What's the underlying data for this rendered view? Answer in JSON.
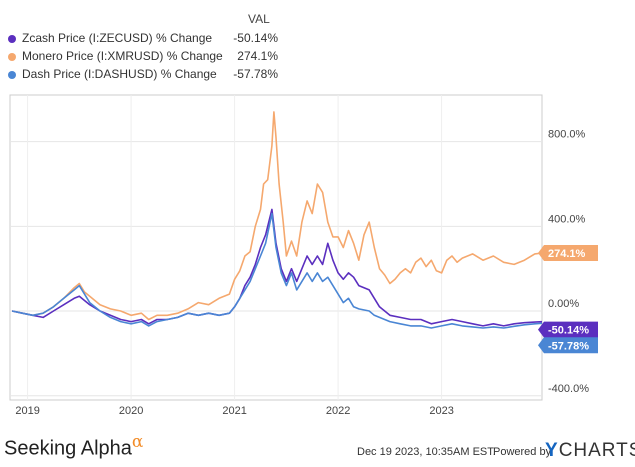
{
  "legend": {
    "value_header": "VAL",
    "items": [
      {
        "label": "Zcash Price (I:ZECUSD) % Change",
        "value": "-50.14%",
        "color": "#5b2fbf"
      },
      {
        "label": "Monero Price (I:XMRUSD) % Change",
        "value": "274.1%",
        "color": "#f5a86e"
      },
      {
        "label": "Dash Price (I:DASHUSD) % Change",
        "value": "-57.78%",
        "color": "#4a86d4"
      }
    ]
  },
  "chart_data": {
    "type": "line",
    "title": "",
    "xlabel": "",
    "ylabel": "",
    "x_ticks": [
      "2019",
      "2020",
      "2021",
      "2022",
      "2023"
    ],
    "y_ticks": [
      "800.0%",
      "400.0%",
      "0.00%",
      "-400.0%"
    ],
    "ylim": [
      -400,
      1000
    ],
    "xlim": [
      2018.83,
      2023.97
    ],
    "grid": "horizontal",
    "end_labels": [
      {
        "text": "274.1%",
        "value": 274.1,
        "color": "#f5a86e"
      },
      {
        "text": "-50.14%",
        "value": -50.14,
        "color": "#5b2fbf"
      },
      {
        "text": "-57.78%",
        "value": -57.78,
        "color": "#4a86d4"
      }
    ],
    "series": [
      {
        "name": "Monero Price (I:XMRUSD) % Change",
        "color": "#f5a86e",
        "points": [
          [
            2018.85,
            0
          ],
          [
            2018.95,
            -10
          ],
          [
            2019.05,
            -20
          ],
          [
            2019.15,
            -10
          ],
          [
            2019.25,
            20
          ],
          [
            2019.35,
            60
          ],
          [
            2019.45,
            110
          ],
          [
            2019.5,
            130
          ],
          [
            2019.55,
            90
          ],
          [
            2019.6,
            70
          ],
          [
            2019.7,
            30
          ],
          [
            2019.8,
            10
          ],
          [
            2019.9,
            0
          ],
          [
            2020.0,
            -20
          ],
          [
            2020.1,
            -10
          ],
          [
            2020.17,
            -40
          ],
          [
            2020.25,
            -20
          ],
          [
            2020.35,
            -20
          ],
          [
            2020.45,
            -10
          ],
          [
            2020.55,
            10
          ],
          [
            2020.65,
            40
          ],
          [
            2020.75,
            30
          ],
          [
            2020.85,
            60
          ],
          [
            2020.95,
            80
          ],
          [
            2021.0,
            150
          ],
          [
            2021.05,
            190
          ],
          [
            2021.1,
            260
          ],
          [
            2021.15,
            280
          ],
          [
            2021.2,
            400
          ],
          [
            2021.25,
            480
          ],
          [
            2021.28,
            600
          ],
          [
            2021.32,
            620
          ],
          [
            2021.36,
            780
          ],
          [
            2021.38,
            940
          ],
          [
            2021.4,
            820
          ],
          [
            2021.43,
            600
          ],
          [
            2021.47,
            420
          ],
          [
            2021.5,
            260
          ],
          [
            2021.55,
            330
          ],
          [
            2021.6,
            260
          ],
          [
            2021.65,
            420
          ],
          [
            2021.7,
            520
          ],
          [
            2021.75,
            460
          ],
          [
            2021.8,
            600
          ],
          [
            2021.85,
            560
          ],
          [
            2021.9,
            420
          ],
          [
            2021.95,
            350
          ],
          [
            2022.0,
            350
          ],
          [
            2022.05,
            300
          ],
          [
            2022.1,
            380
          ],
          [
            2022.15,
            320
          ],
          [
            2022.2,
            240
          ],
          [
            2022.25,
            360
          ],
          [
            2022.3,
            420
          ],
          [
            2022.35,
            300
          ],
          [
            2022.4,
            200
          ],
          [
            2022.45,
            170
          ],
          [
            2022.5,
            130
          ],
          [
            2022.55,
            150
          ],
          [
            2022.6,
            180
          ],
          [
            2022.65,
            200
          ],
          [
            2022.7,
            180
          ],
          [
            2022.75,
            230
          ],
          [
            2022.8,
            250
          ],
          [
            2022.85,
            210
          ],
          [
            2022.9,
            240
          ],
          [
            2022.95,
            190
          ],
          [
            2023.0,
            180
          ],
          [
            2023.05,
            240
          ],
          [
            2023.1,
            260
          ],
          [
            2023.15,
            230
          ],
          [
            2023.2,
            250
          ],
          [
            2023.3,
            270
          ],
          [
            2023.4,
            240
          ],
          [
            2023.5,
            260
          ],
          [
            2023.6,
            230
          ],
          [
            2023.7,
            220
          ],
          [
            2023.8,
            240
          ],
          [
            2023.9,
            270
          ],
          [
            2023.97,
            274.1
          ]
        ]
      },
      {
        "name": "Zcash Price (I:ZECUSD) % Change",
        "color": "#5b2fbf",
        "points": [
          [
            2018.85,
            0
          ],
          [
            2018.95,
            -10
          ],
          [
            2019.05,
            -20
          ],
          [
            2019.15,
            -30
          ],
          [
            2019.25,
            0
          ],
          [
            2019.35,
            30
          ],
          [
            2019.45,
            60
          ],
          [
            2019.5,
            70
          ],
          [
            2019.55,
            50
          ],
          [
            2019.6,
            30
          ],
          [
            2019.7,
            0
          ],
          [
            2019.8,
            -20
          ],
          [
            2019.9,
            -40
          ],
          [
            2020.0,
            -50
          ],
          [
            2020.1,
            -40
          ],
          [
            2020.17,
            -60
          ],
          [
            2020.25,
            -40
          ],
          [
            2020.35,
            -40
          ],
          [
            2020.45,
            -30
          ],
          [
            2020.55,
            -10
          ],
          [
            2020.65,
            -20
          ],
          [
            2020.75,
            -10
          ],
          [
            2020.85,
            -20
          ],
          [
            2020.95,
            -10
          ],
          [
            2021.0,
            20
          ],
          [
            2021.05,
            60
          ],
          [
            2021.1,
            120
          ],
          [
            2021.15,
            160
          ],
          [
            2021.2,
            220
          ],
          [
            2021.25,
            300
          ],
          [
            2021.3,
            360
          ],
          [
            2021.36,
            480
          ],
          [
            2021.4,
            320
          ],
          [
            2021.45,
            200
          ],
          [
            2021.5,
            140
          ],
          [
            2021.55,
            200
          ],
          [
            2021.6,
            140
          ],
          [
            2021.65,
            200
          ],
          [
            2021.7,
            260
          ],
          [
            2021.75,
            220
          ],
          [
            2021.8,
            260
          ],
          [
            2021.85,
            220
          ],
          [
            2021.9,
            320
          ],
          [
            2021.95,
            240
          ],
          [
            2022.0,
            180
          ],
          [
            2022.05,
            150
          ],
          [
            2022.1,
            180
          ],
          [
            2022.15,
            160
          ],
          [
            2022.2,
            120
          ],
          [
            2022.3,
            100
          ],
          [
            2022.35,
            60
          ],
          [
            2022.4,
            20
          ],
          [
            2022.45,
            0
          ],
          [
            2022.5,
            -20
          ],
          [
            2022.6,
            -30
          ],
          [
            2022.7,
            -40
          ],
          [
            2022.8,
            -40
          ],
          [
            2022.9,
            -60
          ],
          [
            2023.0,
            -50
          ],
          [
            2023.1,
            -40
          ],
          [
            2023.2,
            -50
          ],
          [
            2023.3,
            -60
          ],
          [
            2023.4,
            -70
          ],
          [
            2023.5,
            -60
          ],
          [
            2023.6,
            -70
          ],
          [
            2023.7,
            -60
          ],
          [
            2023.8,
            -55
          ],
          [
            2023.9,
            -52
          ],
          [
            2023.97,
            -50.14
          ]
        ]
      },
      {
        "name": "Dash Price (I:DASHUSD) % Change",
        "color": "#4a86d4",
        "points": [
          [
            2018.85,
            0
          ],
          [
            2018.95,
            -10
          ],
          [
            2019.05,
            -20
          ],
          [
            2019.15,
            -10
          ],
          [
            2019.25,
            20
          ],
          [
            2019.35,
            60
          ],
          [
            2019.45,
            100
          ],
          [
            2019.5,
            120
          ],
          [
            2019.55,
            80
          ],
          [
            2019.6,
            40
          ],
          [
            2019.7,
            0
          ],
          [
            2019.8,
            -30
          ],
          [
            2019.9,
            -50
          ],
          [
            2020.0,
            -60
          ],
          [
            2020.1,
            -50
          ],
          [
            2020.17,
            -70
          ],
          [
            2020.25,
            -50
          ],
          [
            2020.35,
            -40
          ],
          [
            2020.45,
            -30
          ],
          [
            2020.55,
            -10
          ],
          [
            2020.65,
            -20
          ],
          [
            2020.75,
            -10
          ],
          [
            2020.85,
            -20
          ],
          [
            2020.95,
            -10
          ],
          [
            2021.0,
            20
          ],
          [
            2021.05,
            60
          ],
          [
            2021.1,
            100
          ],
          [
            2021.15,
            140
          ],
          [
            2021.2,
            200
          ],
          [
            2021.25,
            260
          ],
          [
            2021.3,
            320
          ],
          [
            2021.36,
            460
          ],
          [
            2021.4,
            300
          ],
          [
            2021.45,
            180
          ],
          [
            2021.5,
            120
          ],
          [
            2021.55,
            180
          ],
          [
            2021.6,
            100
          ],
          [
            2021.65,
            140
          ],
          [
            2021.7,
            180
          ],
          [
            2021.75,
            140
          ],
          [
            2021.8,
            180
          ],
          [
            2021.85,
            140
          ],
          [
            2021.9,
            160
          ],
          [
            2021.95,
            120
          ],
          [
            2022.0,
            80
          ],
          [
            2022.05,
            40
          ],
          [
            2022.1,
            60
          ],
          [
            2022.15,
            20
          ],
          [
            2022.2,
            10
          ],
          [
            2022.3,
            0
          ],
          [
            2022.35,
            -20
          ],
          [
            2022.4,
            -30
          ],
          [
            2022.45,
            -40
          ],
          [
            2022.5,
            -50
          ],
          [
            2022.6,
            -60
          ],
          [
            2022.7,
            -70
          ],
          [
            2022.8,
            -70
          ],
          [
            2022.9,
            -80
          ],
          [
            2023.0,
            -70
          ],
          [
            2023.1,
            -60
          ],
          [
            2023.2,
            -70
          ],
          [
            2023.3,
            -75
          ],
          [
            2023.4,
            -80
          ],
          [
            2023.5,
            -75
          ],
          [
            2023.6,
            -80
          ],
          [
            2023.7,
            -72
          ],
          [
            2023.8,
            -65
          ],
          [
            2023.9,
            -60
          ],
          [
            2023.97,
            -57.78
          ]
        ]
      }
    ]
  },
  "footer": {
    "logo_text": "Seeking Alpha",
    "logo_symbol": "α",
    "date": "Dec 19 2023, 10:35AM EST.",
    "powered_by": "Powered by",
    "brand_y": "Y",
    "brand_rest": "CHARTS"
  }
}
